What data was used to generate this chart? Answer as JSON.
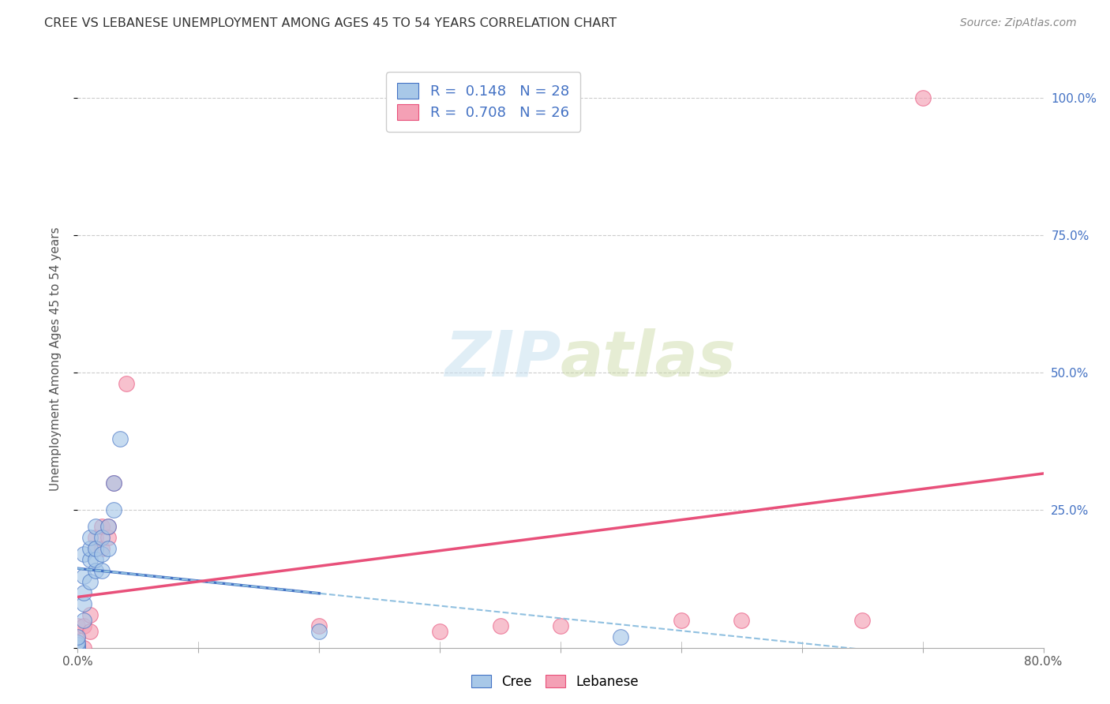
{
  "title": "CREE VS LEBANESE UNEMPLOYMENT AMONG AGES 45 TO 54 YEARS CORRELATION CHART",
  "source": "Source: ZipAtlas.com",
  "ylabel": "Unemployment Among Ages 45 to 54 years",
  "xlim": [
    0.0,
    0.8
  ],
  "ylim": [
    0.0,
    1.05
  ],
  "xticks": [
    0.0,
    0.1,
    0.2,
    0.3,
    0.4,
    0.5,
    0.6,
    0.7,
    0.8
  ],
  "yticks_right": [
    0.0,
    0.25,
    0.5,
    0.75,
    1.0
  ],
  "yticklabels_right": [
    "",
    "25.0%",
    "50.0%",
    "75.0%",
    "100.0%"
  ],
  "cree_R": 0.148,
  "cree_N": 28,
  "lebanese_R": 0.708,
  "lebanese_N": 26,
  "cree_color": "#a8c8e8",
  "lebanese_color": "#f4a0b5",
  "cree_line_color": "#4472c4",
  "lebanese_line_color": "#e8507a",
  "cree_dashed_color": "#90c0e0",
  "watermark": "ZIPatlas",
  "background_color": "#ffffff",
  "cree_x": [
    0.0,
    0.0,
    0.0,
    0.0,
    0.0,
    0.005,
    0.005,
    0.005,
    0.005,
    0.005,
    0.01,
    0.01,
    0.01,
    0.01,
    0.015,
    0.015,
    0.015,
    0.015,
    0.02,
    0.02,
    0.02,
    0.025,
    0.025,
    0.03,
    0.03,
    0.035,
    0.2,
    0.45
  ],
  "cree_y": [
    0.0,
    0.0,
    0.005,
    0.01,
    0.02,
    0.05,
    0.08,
    0.1,
    0.13,
    0.17,
    0.12,
    0.16,
    0.18,
    0.2,
    0.14,
    0.16,
    0.18,
    0.22,
    0.14,
    0.17,
    0.2,
    0.18,
    0.22,
    0.25,
    0.3,
    0.38,
    0.03,
    0.02
  ],
  "lebanese_x": [
    0.0,
    0.0,
    0.0,
    0.0,
    0.0,
    0.0,
    0.005,
    0.005,
    0.01,
    0.01,
    0.015,
    0.015,
    0.02,
    0.02,
    0.025,
    0.025,
    0.03,
    0.04,
    0.2,
    0.3,
    0.35,
    0.4,
    0.5,
    0.55,
    0.65,
    0.7
  ],
  "lebanese_y": [
    0.0,
    0.0,
    0.005,
    0.01,
    0.02,
    0.04,
    0.0,
    0.04,
    0.03,
    0.06,
    0.18,
    0.2,
    0.18,
    0.22,
    0.2,
    0.22,
    0.3,
    0.48,
    0.04,
    0.03,
    0.04,
    0.04,
    0.05,
    0.05,
    0.05,
    1.0
  ]
}
